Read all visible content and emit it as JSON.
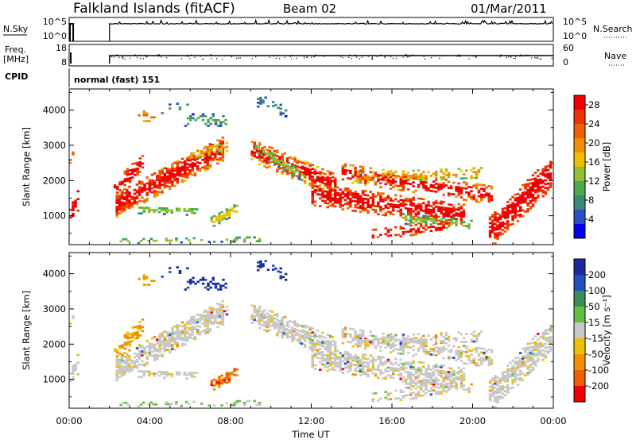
{
  "header": {
    "station": "Falkland Islands (fitACF)",
    "beam": "Beam 02",
    "date": "01/Mar/2011"
  },
  "sky_panel": {
    "left_label": "N.Sky",
    "right_label": "N.Search",
    "left_ticks": [
      "10^5",
      "10^0"
    ],
    "right_ticks": [
      "10^5",
      "10^0"
    ]
  },
  "freq_panel": {
    "left_label_1": "Freq.",
    "left_label_2": "[MHz]",
    "right_label": "Nave",
    "left_ticks": [
      "18",
      "8"
    ],
    "right_ticks": [
      "60",
      "0"
    ]
  },
  "cpid": {
    "label": "CPID",
    "mode": "normal (fast) 151"
  },
  "x_axis": {
    "title": "Time UT",
    "ticks": [
      "00:00",
      "04:00",
      "08:00",
      "12:00",
      "16:00",
      "20:00",
      "00:00"
    ]
  },
  "power_panel": {
    "ylabel": "Slant Range [km]",
    "yticks": [
      "1000",
      "2000",
      "3000",
      "4000"
    ],
    "colorbar_label": "Power [dB]",
    "colorbar_ticks": [
      "4",
      "8",
      "12",
      "16",
      "20",
      "24",
      "28"
    ],
    "colors": [
      "#0000f0",
      "#2a4fc0",
      "#3a8a7a",
      "#4ea84e",
      "#90c030",
      "#f0c000",
      "#f09000",
      "#f06000",
      "#f03000",
      "#f00000"
    ]
  },
  "velocity_panel": {
    "ylabel": "Slant Range [km]",
    "yticks": [
      "1000",
      "2000",
      "3000",
      "4000"
    ],
    "colorbar_label": "Velocity [m s⁻¹]",
    "colorbar_ticks": [
      "200",
      "100",
      "50",
      "15",
      "-15",
      "-50",
      "-100",
      "-200"
    ],
    "colors": [
      "#1a2a9a",
      "#2050c0",
      "#3a8a5a",
      "#60c040",
      "#c8c8c8",
      "#f0c000",
      "#f09000",
      "#f06000",
      "#f00000"
    ]
  },
  "chart_data": [
    {
      "type": "line",
      "title": "N.Sky / N.Search",
      "x_range_hours": [
        0,
        24
      ],
      "data_gap_hours": [
        0.2,
        2.0
      ],
      "levels": "near 10^5 outside gap"
    },
    {
      "type": "line",
      "title": "Freq. / Nave",
      "x_range_hours": [
        0,
        24
      ],
      "data_gap_hours": [
        0.2,
        2.0
      ],
      "freq_level_mhz": 11
    },
    {
      "type": "heatmap",
      "title": "Power [dB]",
      "x_range_hours": [
        0,
        24
      ],
      "y_range_km": [
        180,
        4600
      ],
      "scale_db": [
        0,
        30
      ]
    },
    {
      "type": "heatmap",
      "title": "Velocity [m s-1]",
      "x_range_hours": [
        0,
        24
      ],
      "y_range_km": [
        180,
        4600
      ],
      "scale_ms": [
        -200,
        200
      ]
    }
  ]
}
